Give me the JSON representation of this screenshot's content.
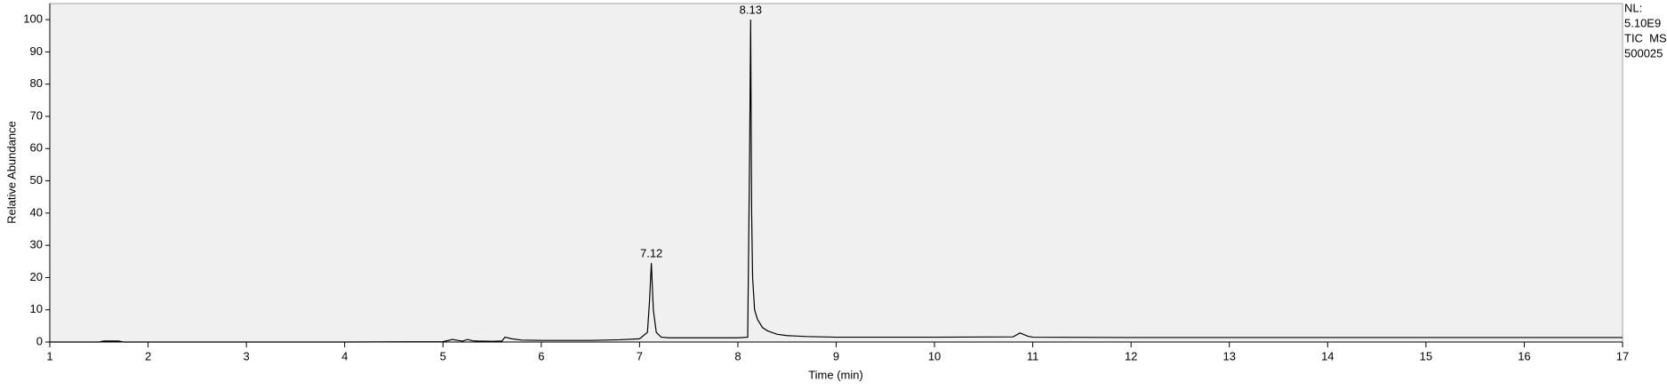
{
  "chart_data": {
    "type": "line",
    "xlabel": "Time (min)",
    "ylabel": "Relative Abundance",
    "side_text": [
      "NL:",
      "5.10E9",
      "TIC  MS",
      "500025"
    ],
    "x": [
      1,
      1.5,
      1.55,
      1.6,
      1.7,
      1.75,
      2,
      3,
      4,
      5,
      5.1,
      5.15,
      5.2,
      5.25,
      5.3,
      5.35,
      5.5,
      5.6,
      5.63,
      5.7,
      5.8,
      6.0,
      6.5,
      6.8,
      7.0,
      7.08,
      7.1,
      7.12,
      7.14,
      7.17,
      7.22,
      7.3,
      8.0,
      8.1,
      8.12,
      8.13,
      8.14,
      8.15,
      8.17,
      8.2,
      8.25,
      8.3,
      8.4,
      8.5,
      8.7,
      9.0,
      10.0,
      10.8,
      10.87,
      10.95,
      11.0,
      12,
      17
    ],
    "values": [
      0,
      0,
      0.3,
      0.3,
      0.3,
      0,
      0,
      0,
      0,
      0.1,
      0.8,
      0.5,
      0.3,
      0.8,
      0.4,
      0.3,
      0.2,
      0.3,
      1.5,
      1.0,
      0.6,
      0.5,
      0.5,
      0.7,
      1.0,
      3,
      12,
      24.5,
      10,
      3,
      1.5,
      1.3,
      1.3,
      1.5,
      60,
      100,
      40,
      20,
      10,
      7,
      4.5,
      3.5,
      2.4,
      2.0,
      1.7,
      1.5,
      1.5,
      1.6,
      2.8,
      1.8,
      1.5,
      1.4,
      1.4
    ],
    "color": "#000000",
    "peaks": [
      {
        "x": 7.12,
        "y": 24.5
      },
      {
        "x": 8.13,
        "y": 100
      }
    ],
    "xlim": [
      1,
      17
    ],
    "xticks": [
      1,
      2,
      3,
      4,
      5,
      6,
      7,
      8,
      9,
      10,
      11,
      12,
      13,
      14,
      15,
      16,
      17
    ],
    "ylim": [
      0,
      105
    ],
    "yticks": [
      0,
      10,
      20,
      30,
      40,
      50,
      60,
      70,
      80,
      90,
      100
    ],
    "grid": false
  }
}
